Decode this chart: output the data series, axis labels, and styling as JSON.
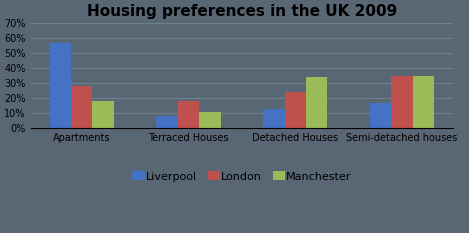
{
  "title": "Housing preferences in the UK 2009",
  "categories": [
    "Apartments",
    "Terraced Houses",
    "Detached Houses",
    "Semi-detached houses"
  ],
  "series": {
    "Liverpool": [
      57,
      8,
      13,
      17
    ],
    "London": [
      28,
      18,
      24,
      35
    ],
    "Manchester": [
      18,
      11,
      34,
      35
    ]
  },
  "colors": {
    "Liverpool": "#4472c4",
    "London": "#c0504d",
    "Manchester": "#9bbb59"
  },
  "ylim": [
    0,
    70
  ],
  "yticks": [
    0,
    10,
    20,
    30,
    40,
    50,
    60,
    70
  ],
  "ytick_labels": [
    "0%",
    "10%",
    "20%",
    "30%",
    "40%",
    "50%",
    "60%",
    "70%"
  ],
  "background_color": "#596673",
  "plot_bg_color": "#596673",
  "title_fontsize": 11,
  "legend_fontsize": 8,
  "tick_fontsize": 7,
  "title_color": "#000000",
  "grid_color": "#6e7f8d",
  "bar_width": 0.2
}
